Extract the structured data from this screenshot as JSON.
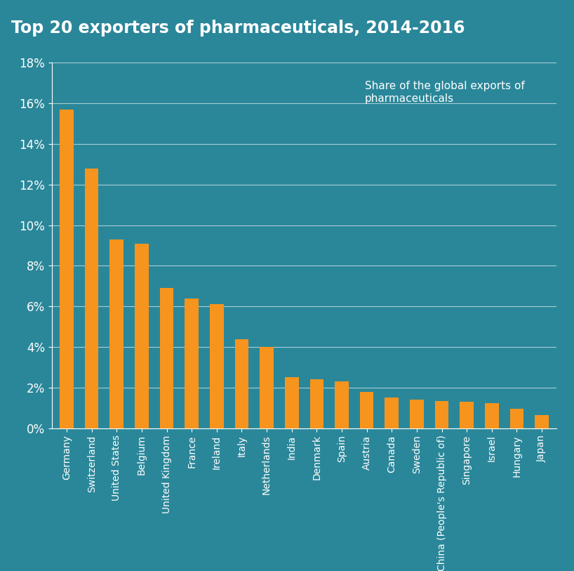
{
  "chart_data": {
    "type": "bar",
    "title": "Top 20 exporters of pharmaceuticals, 2014-2016",
    "subtitle": "Share of the global exports of pharmaceuticals",
    "categories": [
      "Germany",
      "Switzerland",
      "United States",
      "Belgium",
      "United Kingdom",
      "France",
      "Ireland",
      "Italy",
      "Netherlands",
      "India",
      "Denmark",
      "Spain",
      "Austria",
      "Canada",
      "Sweden",
      "China (People's Republic of)",
      "Singapore",
      "Israel",
      "Hungary",
      "Japan"
    ],
    "values": [
      15.7,
      12.8,
      9.3,
      9.1,
      6.9,
      6.4,
      6.1,
      4.4,
      4.0,
      2.5,
      2.4,
      2.3,
      1.8,
      1.5,
      1.4,
      1.35,
      1.3,
      1.25,
      0.95,
      0.65
    ],
    "color": "#f7941d",
    "ylim": [
      0,
      18
    ],
    "yticks": [
      {
        "value": 0,
        "label": "0%"
      },
      {
        "value": 2,
        "label": "2%"
      },
      {
        "value": 4,
        "label": "4%"
      },
      {
        "value": 6,
        "label": "6%"
      },
      {
        "value": 8,
        "label": "8%"
      },
      {
        "value": 10,
        "label": "10%"
      },
      {
        "value": 12,
        "label": "12%"
      },
      {
        "value": 14,
        "label": "14%"
      },
      {
        "value": 16,
        "label": "16%"
      },
      {
        "value": 18,
        "label": "18%"
      }
    ],
    "grid": true
  }
}
